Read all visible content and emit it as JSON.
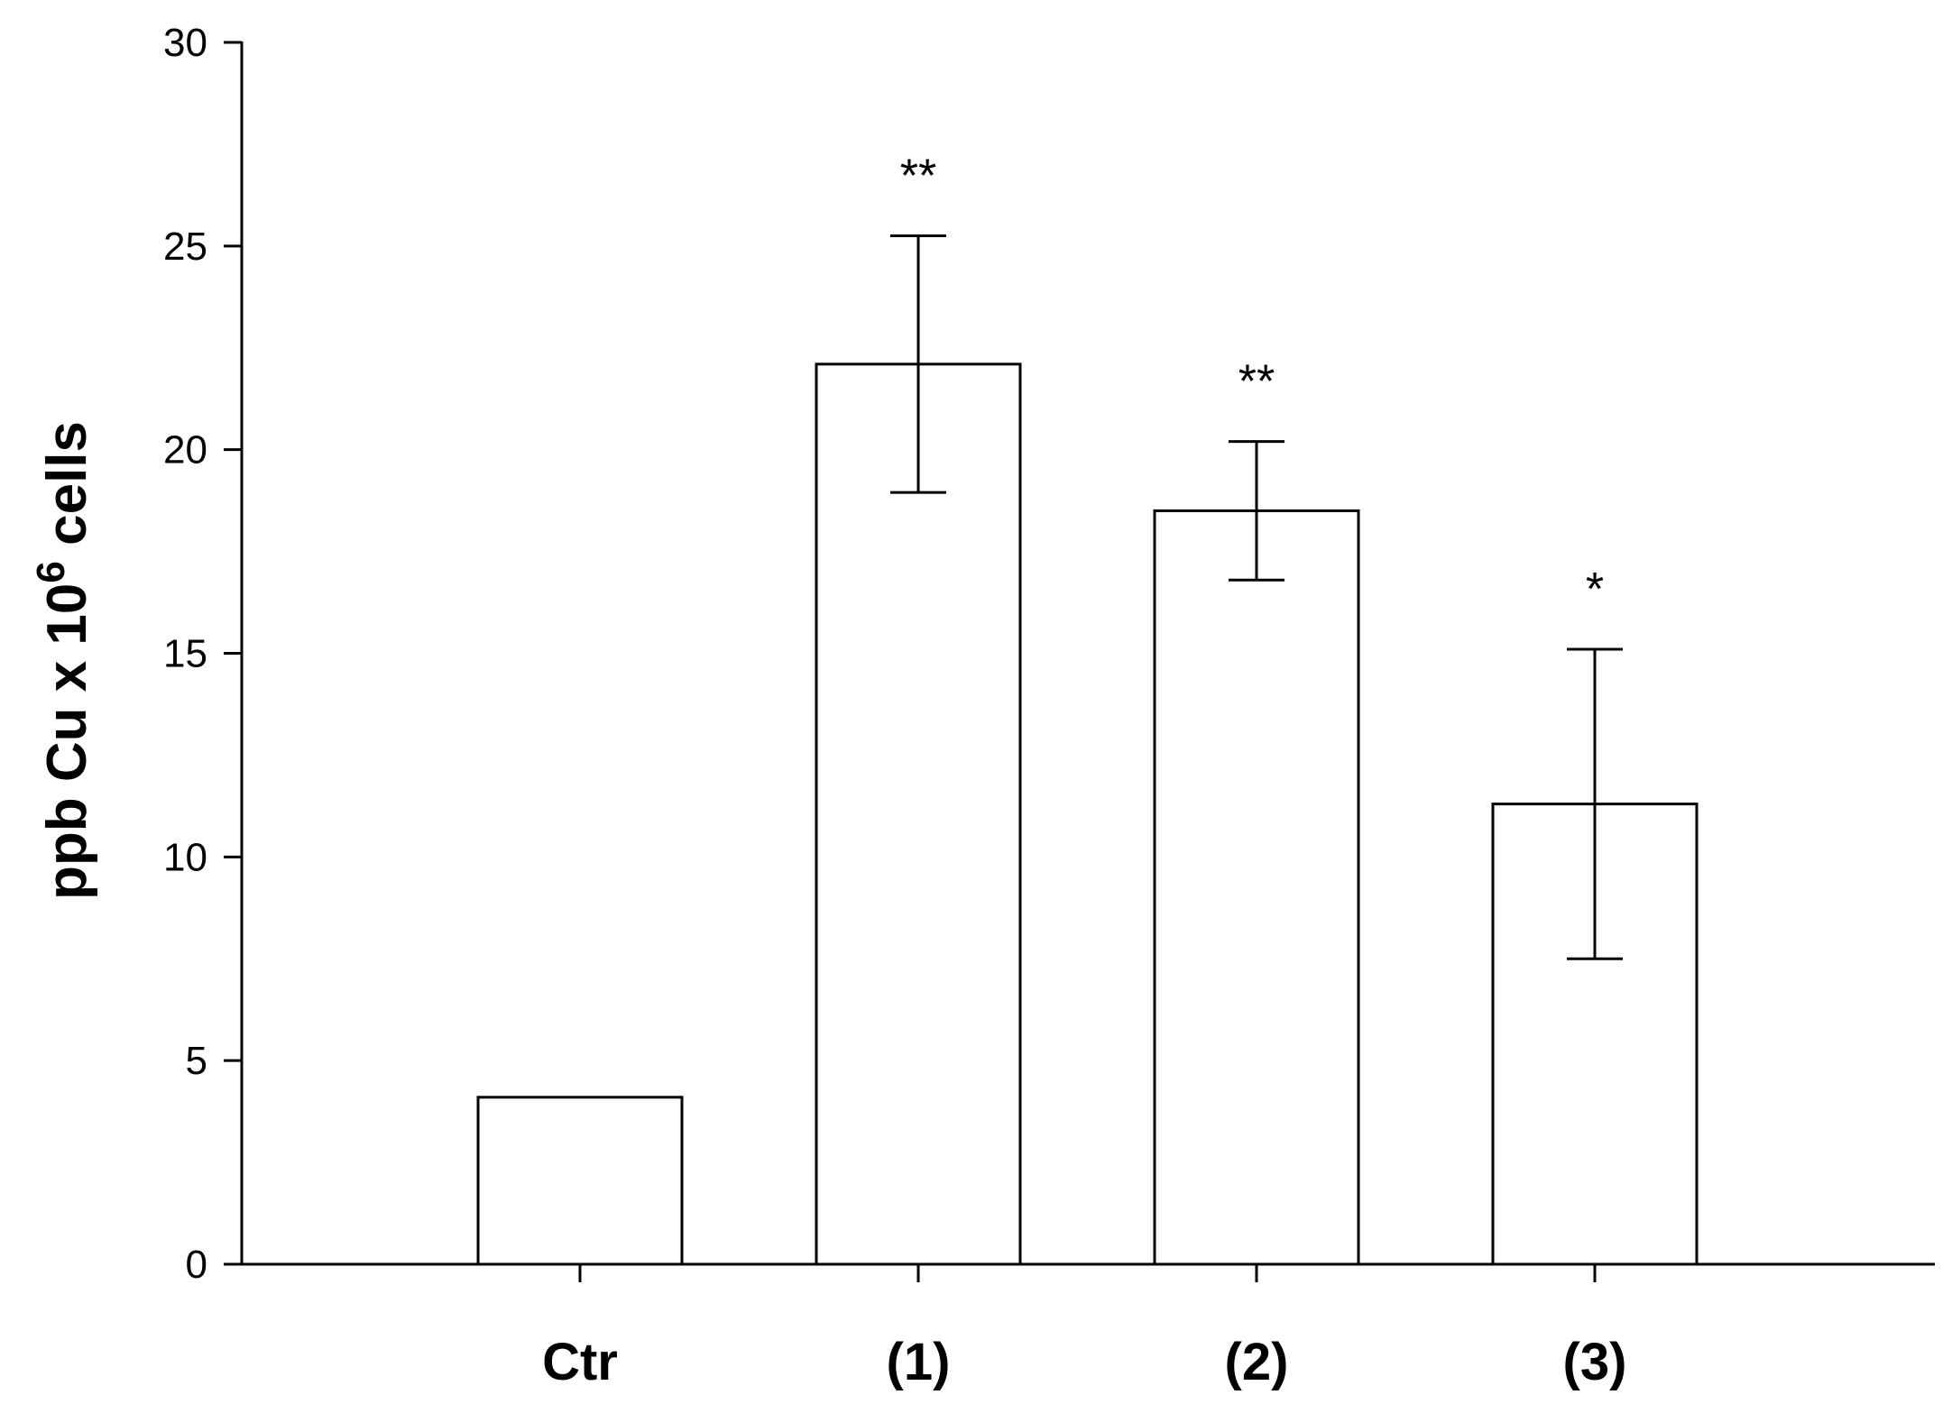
{
  "chart_data": {
    "type": "bar",
    "title": "",
    "xlabel": "",
    "ylabel": {
      "prefix": "ppb Cu x 10",
      "superscript": "6",
      "suffix": " cells"
    },
    "ylim": [
      0,
      30
    ],
    "yticks": [
      0,
      5,
      10,
      15,
      20,
      25,
      30
    ],
    "grid": false,
    "categories": [
      "Ctr",
      "(1)",
      "(2)",
      "(3)"
    ],
    "values": [
      4.1,
      22.1,
      18.5,
      11.3
    ],
    "error": [
      null,
      3.15,
      1.7,
      3.8
    ],
    "annotations": [
      "",
      "**",
      "**",
      "*"
    ],
    "colors": {
      "bar_fill": "#ffffff",
      "stroke": "#000000"
    }
  }
}
